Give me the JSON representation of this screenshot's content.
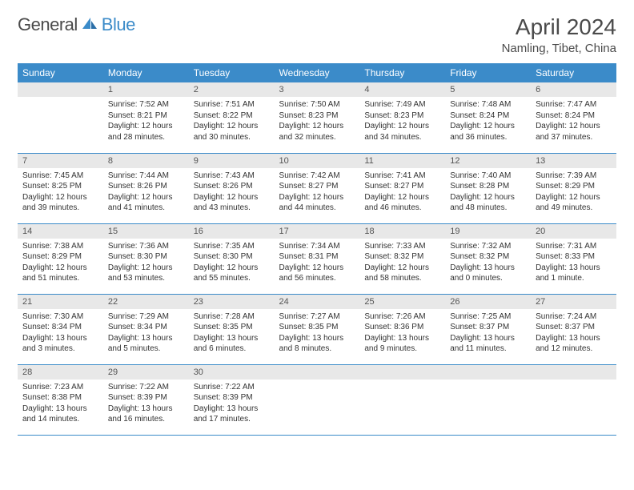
{
  "brand": {
    "name1": "General",
    "name2": "Blue",
    "color2": "#3b8bc9"
  },
  "title": "April 2024",
  "location": "Namling, Tibet, China",
  "headers": [
    "Sunday",
    "Monday",
    "Tuesday",
    "Wednesday",
    "Thursday",
    "Friday",
    "Saturday"
  ],
  "header_bg": "#3b8bc9",
  "header_fg": "#ffffff",
  "daybar_bg": "#e8e8e8",
  "rule_color": "#3b8bc9",
  "title_fontsize": 28,
  "header_fontsize": 12,
  "cell_fontsize": 10,
  "weeks": [
    [
      null,
      {
        "n": "1",
        "sr": "7:52 AM",
        "ss": "8:21 PM",
        "dl": "12 hours and 28 minutes."
      },
      {
        "n": "2",
        "sr": "7:51 AM",
        "ss": "8:22 PM",
        "dl": "12 hours and 30 minutes."
      },
      {
        "n": "3",
        "sr": "7:50 AM",
        "ss": "8:23 PM",
        "dl": "12 hours and 32 minutes."
      },
      {
        "n": "4",
        "sr": "7:49 AM",
        "ss": "8:23 PM",
        "dl": "12 hours and 34 minutes."
      },
      {
        "n": "5",
        "sr": "7:48 AM",
        "ss": "8:24 PM",
        "dl": "12 hours and 36 minutes."
      },
      {
        "n": "6",
        "sr": "7:47 AM",
        "ss": "8:24 PM",
        "dl": "12 hours and 37 minutes."
      }
    ],
    [
      {
        "n": "7",
        "sr": "7:45 AM",
        "ss": "8:25 PM",
        "dl": "12 hours and 39 minutes."
      },
      {
        "n": "8",
        "sr": "7:44 AM",
        "ss": "8:26 PM",
        "dl": "12 hours and 41 minutes."
      },
      {
        "n": "9",
        "sr": "7:43 AM",
        "ss": "8:26 PM",
        "dl": "12 hours and 43 minutes."
      },
      {
        "n": "10",
        "sr": "7:42 AM",
        "ss": "8:27 PM",
        "dl": "12 hours and 44 minutes."
      },
      {
        "n": "11",
        "sr": "7:41 AM",
        "ss": "8:27 PM",
        "dl": "12 hours and 46 minutes."
      },
      {
        "n": "12",
        "sr": "7:40 AM",
        "ss": "8:28 PM",
        "dl": "12 hours and 48 minutes."
      },
      {
        "n": "13",
        "sr": "7:39 AM",
        "ss": "8:29 PM",
        "dl": "12 hours and 49 minutes."
      }
    ],
    [
      {
        "n": "14",
        "sr": "7:38 AM",
        "ss": "8:29 PM",
        "dl": "12 hours and 51 minutes."
      },
      {
        "n": "15",
        "sr": "7:36 AM",
        "ss": "8:30 PM",
        "dl": "12 hours and 53 minutes."
      },
      {
        "n": "16",
        "sr": "7:35 AM",
        "ss": "8:30 PM",
        "dl": "12 hours and 55 minutes."
      },
      {
        "n": "17",
        "sr": "7:34 AM",
        "ss": "8:31 PM",
        "dl": "12 hours and 56 minutes."
      },
      {
        "n": "18",
        "sr": "7:33 AM",
        "ss": "8:32 PM",
        "dl": "12 hours and 58 minutes."
      },
      {
        "n": "19",
        "sr": "7:32 AM",
        "ss": "8:32 PM",
        "dl": "13 hours and 0 minutes."
      },
      {
        "n": "20",
        "sr": "7:31 AM",
        "ss": "8:33 PM",
        "dl": "13 hours and 1 minute."
      }
    ],
    [
      {
        "n": "21",
        "sr": "7:30 AM",
        "ss": "8:34 PM",
        "dl": "13 hours and 3 minutes."
      },
      {
        "n": "22",
        "sr": "7:29 AM",
        "ss": "8:34 PM",
        "dl": "13 hours and 5 minutes."
      },
      {
        "n": "23",
        "sr": "7:28 AM",
        "ss": "8:35 PM",
        "dl": "13 hours and 6 minutes."
      },
      {
        "n": "24",
        "sr": "7:27 AM",
        "ss": "8:35 PM",
        "dl": "13 hours and 8 minutes."
      },
      {
        "n": "25",
        "sr": "7:26 AM",
        "ss": "8:36 PM",
        "dl": "13 hours and 9 minutes."
      },
      {
        "n": "26",
        "sr": "7:25 AM",
        "ss": "8:37 PM",
        "dl": "13 hours and 11 minutes."
      },
      {
        "n": "27",
        "sr": "7:24 AM",
        "ss": "8:37 PM",
        "dl": "13 hours and 12 minutes."
      }
    ],
    [
      {
        "n": "28",
        "sr": "7:23 AM",
        "ss": "8:38 PM",
        "dl": "13 hours and 14 minutes."
      },
      {
        "n": "29",
        "sr": "7:22 AM",
        "ss": "8:39 PM",
        "dl": "13 hours and 16 minutes."
      },
      {
        "n": "30",
        "sr": "7:22 AM",
        "ss": "8:39 PM",
        "dl": "13 hours and 17 minutes."
      },
      null,
      null,
      null,
      null
    ]
  ],
  "labels": {
    "sunrise": "Sunrise:",
    "sunset": "Sunset:",
    "daylight": "Daylight:"
  }
}
